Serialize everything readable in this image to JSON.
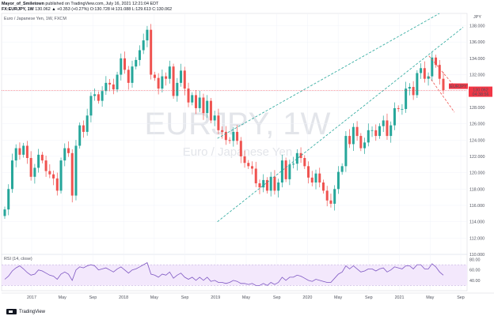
{
  "header": {
    "line1_author": "Mayor_of_Smiletown",
    "line1_rest": "published on TradingView.com, July 16, 2021 12:21:04 EDT",
    "line2_symbol": "FX:EURJPY, 1W",
    "line2_ohlc": "130.062 ▲ +0.353 (+0.27%) O:130.728 H:131.088 L:129.613 C:130.062"
  },
  "legend_label": "Euro / Japanese Yen, 1W, FXCM",
  "currency_label": "JPY",
  "watermark": {
    "symbol": "EURJPY, 1W",
    "name": "Euro / Japanese Yen"
  },
  "price_badge": {
    "symbol": "EURJPY",
    "price": "130.062",
    "countdown": "04:38:56",
    "color": "#f23645"
  },
  "rsi_label": "RSI (14, close)",
  "footer": {
    "brand": "TradingView"
  },
  "colors": {
    "up": "#26a69a",
    "down": "#ef5350",
    "rsi": "#7e57c2",
    "channel": "#26a69a",
    "wedge": "#ef5350"
  },
  "chart_data": {
    "type": "candlestick",
    "timeframe": "1W",
    "y_axis_labels": [
      "138.000",
      "136.000",
      "134.000",
      "132.000",
      "130.000",
      "128.000",
      "126.000",
      "124.000",
      "122.000",
      "120.000",
      "118.000",
      "116.000",
      "114.000",
      "112.000",
      "110.000"
    ],
    "ylim": [
      110,
      139.5
    ],
    "x_axis_labels": [
      "2017",
      "May",
      "Sep",
      "2018",
      "May",
      "Sep",
      "2019",
      "May",
      "Sep",
      "2020",
      "May",
      "Sep",
      "2021",
      "May",
      "Sep"
    ],
    "weekly_closes_approx": [
      115.5,
      118.0,
      121.5,
      123.0,
      122.2,
      123.3,
      121.8,
      119.5,
      120.6,
      122.2,
      121.5,
      120.2,
      119.8,
      119.3,
      117.8,
      121.5,
      123.0,
      122.4,
      117.2,
      123.3,
      125.8,
      125.0,
      127.0,
      129.4,
      129.6,
      128.8,
      130.0,
      131.0,
      130.8,
      130.2,
      132.0,
      134.0,
      132.6,
      131.0,
      133.0,
      133.8,
      135.0,
      136.2,
      137.5,
      132.0,
      131.6,
      130.3,
      131.8,
      131.5,
      133.0,
      129.4,
      131.0,
      132.5,
      130.3,
      128.6,
      129.5,
      127.9,
      129.2,
      127.3,
      128.8,
      126.4,
      127.0,
      125.2,
      125.0,
      124.0,
      123.9,
      125.0,
      123.9,
      122.0,
      121.2,
      120.8,
      120.5,
      118.7,
      118.2,
      119.1,
      117.8,
      119.5,
      117.8,
      118.8,
      121.5,
      119.2,
      121.0,
      121.1,
      122.4,
      121.8,
      120.8,
      119.4,
      118.8,
      119.9,
      118.8,
      117.8,
      116.6,
      116.2,
      118.0,
      120.1,
      120.8,
      124.5,
      123.5,
      125.6,
      124.5,
      123.0,
      123.7,
      125.2,
      125.2,
      124.5,
      125.7,
      126.4,
      124.5,
      125.8,
      127.9,
      127.8,
      127.8,
      130.3,
      130.5,
      129.5,
      132.2,
      132.8,
      131.5,
      131.8,
      134.1,
      133.2,
      131.5,
      130.1
    ],
    "last_price": 130.062,
    "overlays": [
      {
        "type": "ascending_channel",
        "style": "dashed",
        "from": "2020-05",
        "to": "2021-09"
      },
      {
        "type": "falling_wedge",
        "style": "dashed",
        "from": "2021-06",
        "to": "2021-08"
      }
    ],
    "indicator": {
      "name": "RSI",
      "period": 14,
      "source": "close",
      "y_axis_labels": [
        "80.00",
        "60.00",
        "40.00"
      ],
      "band": [
        30,
        70
      ],
      "values_approx": [
        42,
        48,
        58,
        64,
        68,
        62,
        55,
        50,
        52,
        60,
        58,
        54,
        50,
        48,
        42,
        52,
        56,
        52,
        40,
        60,
        66,
        64,
        68,
        70,
        68,
        60,
        62,
        64,
        60,
        56,
        62,
        66,
        60,
        54,
        60,
        62,
        66,
        70,
        74,
        52,
        50,
        46,
        52,
        50,
        56,
        44,
        50,
        54,
        46,
        42,
        46,
        40,
        46,
        40,
        46,
        38,
        40,
        36,
        36,
        34,
        36,
        40,
        38,
        34,
        34,
        32,
        34,
        30,
        30,
        34,
        30,
        36,
        32,
        36,
        46,
        40,
        46,
        46,
        50,
        48,
        44,
        40,
        38,
        42,
        40,
        38,
        36,
        36,
        44,
        52,
        56,
        68,
        62,
        68,
        62,
        56,
        58,
        62,
        62,
        58,
        62,
        64,
        56,
        60,
        66,
        64,
        62,
        68,
        68,
        62,
        70,
        70,
        62,
        62,
        72,
        66,
        56,
        50
      ]
    }
  }
}
